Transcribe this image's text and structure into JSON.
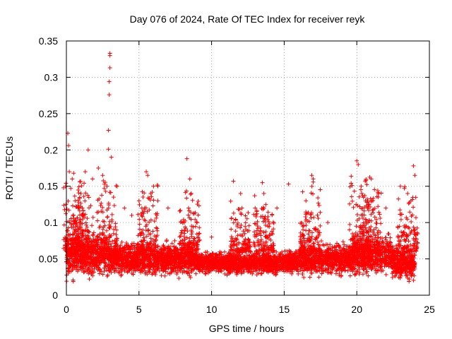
{
  "chart_data": {
    "type": "scatter",
    "title": "Day 076 of 2024, Rate Of TEC Index for receiver reyk",
    "xlabel": "GPS time / hours",
    "ylabel": "ROTI / TECUs",
    "xlim": [
      0,
      25
    ],
    "ylim": [
      0,
      0.35
    ],
    "x_ticks": [
      "0",
      "5",
      "10",
      "15",
      "20",
      "25"
    ],
    "y_ticks": [
      "0",
      "0.05",
      "0.1",
      "0.15",
      "0.2",
      "0.25",
      "0.3",
      "0.35"
    ],
    "grid": true,
    "marker": "+",
    "color": "#ff0000",
    "series": [
      {
        "name": "ROTI",
        "note": "dense band of points between ~0.02 and ~0.08 TECUs across 0-24 h, with spikes",
        "x": [
          0.1,
          0.15,
          0.2,
          0.3,
          0.4,
          0.5,
          0.6,
          0.8,
          1.0,
          1.3,
          1.5,
          1.8,
          2.2,
          2.5,
          2.8,
          2.9,
          2.95,
          2.95,
          3.0,
          3.0,
          3.0,
          2.9,
          3.1,
          3.5,
          4.0,
          4.5,
          5.0,
          5.5,
          5.6,
          5.8,
          6.0,
          6.3,
          7.0,
          8.3,
          8.5,
          8.6,
          9.0,
          10.0,
          11.5,
          12.0,
          13.0,
          13.5,
          13.6,
          14.5,
          15.3,
          16.5,
          16.9,
          17.0,
          18.0,
          19.5,
          20.0,
          20.1,
          20.3,
          20.6,
          21.0,
          21.5,
          22.0,
          23.0,
          23.5,
          23.9,
          24.0
        ],
        "y": [
          0.223,
          0.206,
          0.17,
          0.147,
          0.16,
          0.168,
          0.13,
          0.12,
          0.14,
          0.17,
          0.2,
          0.16,
          0.175,
          0.165,
          0.15,
          0.227,
          0.276,
          0.294,
          0.313,
          0.33,
          0.333,
          0.201,
          0.19,
          0.15,
          0.12,
          0.11,
          0.13,
          0.17,
          0.165,
          0.14,
          0.15,
          0.13,
          0.12,
          0.188,
          0.16,
          0.14,
          0.1,
          0.08,
          0.157,
          0.14,
          0.12,
          0.155,
          0.14,
          0.12,
          0.153,
          0.13,
          0.165,
          0.16,
          0.1,
          0.09,
          0.185,
          0.18,
          0.15,
          0.13,
          0.16,
          0.14,
          0.12,
          0.15,
          0.14,
          0.178,
          0.165
        ]
      }
    ]
  }
}
